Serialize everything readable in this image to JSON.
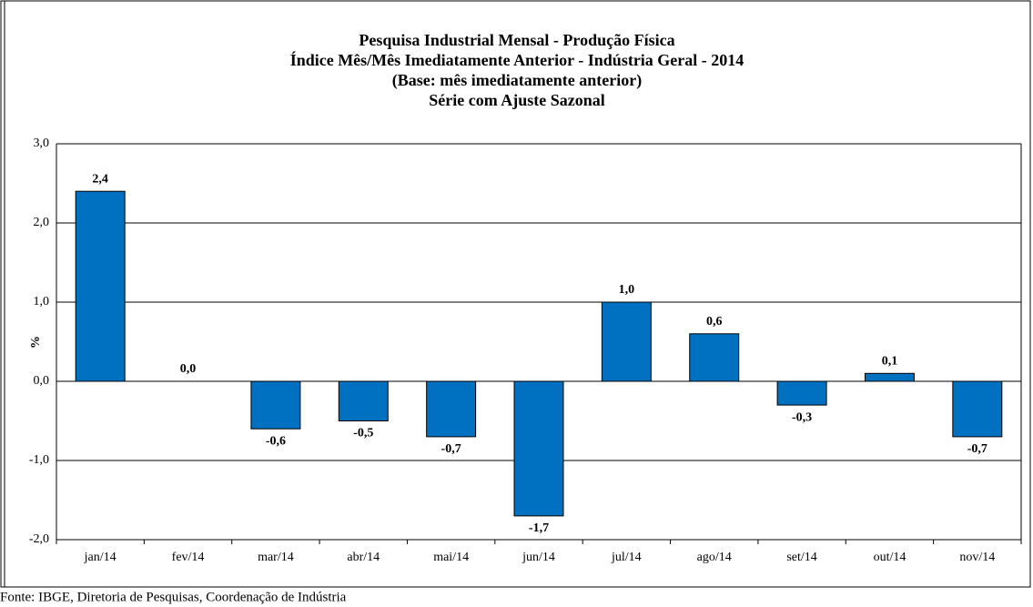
{
  "chart_data": {
    "type": "bar",
    "title": [
      "Pesquisa Industrial Mensal - Produção Física",
      "Índice Mês/Mês Imediatamente Anterior - Indústria Geral - 2014",
      "(Base: mês imediatamente anterior)",
      "Série com Ajuste Sazonal"
    ],
    "y_label": "%",
    "categories": [
      "jan/14",
      "fev/14",
      "mar/14",
      "abr/14",
      "mai/14",
      "jun/14",
      "jul/14",
      "ago/14",
      "set/14",
      "out/14",
      "nov/14"
    ],
    "values": [
      2.4,
      0.0,
      -0.6,
      -0.5,
      -0.7,
      -1.7,
      1.0,
      0.6,
      -0.3,
      0.1,
      -0.7
    ],
    "value_labels": [
      "2,4",
      "0,0",
      "-0,6",
      "-0,5",
      "-0,7",
      "-1,7",
      "1,0",
      "0,6",
      "-0,3",
      "0,1",
      "-0,7"
    ],
    "color": "#0070c0",
    "ylim": [
      -2,
      3
    ],
    "yticks": [
      {
        "value": -2,
        "label": "-2,0"
      },
      {
        "value": -1,
        "label": "-1,0"
      },
      {
        "value": 0,
        "label": "0,0"
      },
      {
        "value": 1,
        "label": "1,0"
      },
      {
        "value": 2,
        "label": "2,0"
      },
      {
        "value": 3,
        "label": "3,0"
      }
    ],
    "grid": true,
    "source": "Fonte: IBGE, Diretoria de Pesquisas, Coordenação de Indústria"
  }
}
